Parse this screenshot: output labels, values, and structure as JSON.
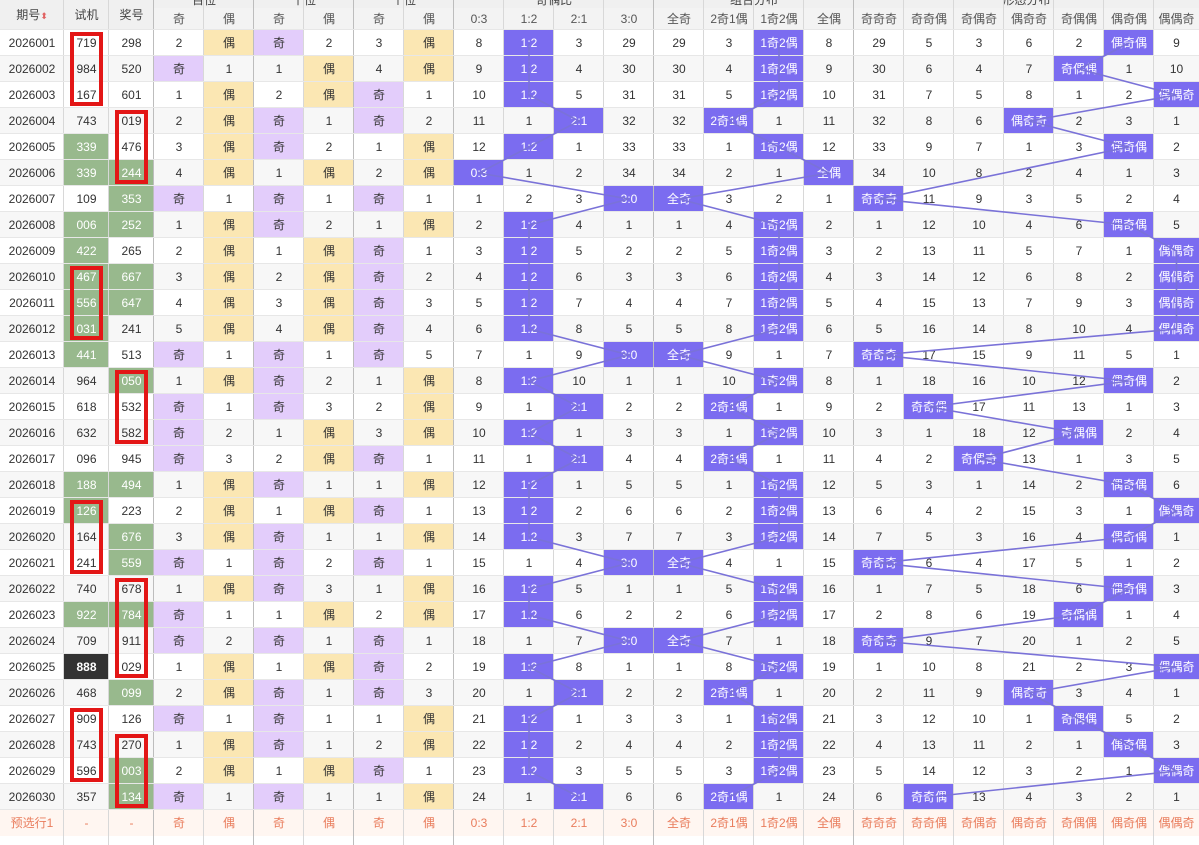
{
  "header": {
    "period_label": "期号",
    "sort_icon": "⬍",
    "test_label": "试机",
    "prize_label": "奖号",
    "groups": [
      "百位",
      "十位",
      "个位",
      "奇偶比",
      "组合分布",
      "形态分布"
    ],
    "sub": [
      "奇",
      "偶",
      "奇",
      "偶",
      "奇",
      "偶",
      "0:3",
      "1:2",
      "2:1",
      "3:0",
      "全奇",
      "2奇1偶",
      "1奇2偶",
      "全偶",
      "奇奇奇",
      "奇奇偶",
      "奇偶奇",
      "偶奇奇",
      "奇偶偶",
      "偶奇偶",
      "偶偶奇"
    ]
  },
  "rows": [
    {
      "p": "2026001",
      "t": "719",
      "z": "298",
      "v": [
        "2",
        "偶",
        "奇",
        "2",
        "3",
        "偶",
        "8",
        "1:2",
        "3",
        "29",
        "29",
        "3",
        "1奇2偶",
        "8",
        "29",
        "5",
        "3",
        "6",
        "2",
        "偶奇偶",
        "9"
      ]
    },
    {
      "p": "2026002",
      "t": "984",
      "z": "520",
      "v": [
        "奇",
        "1",
        "1",
        "偶",
        "4",
        "偶",
        "9",
        "1:2",
        "4",
        "30",
        "30",
        "4",
        "1奇2偶",
        "9",
        "30",
        "6",
        "4",
        "7",
        "奇偶偶",
        "1",
        "10"
      ]
    },
    {
      "p": "2026003",
      "t": "167",
      "z": "601",
      "v": [
        "1",
        "偶",
        "2",
        "偶",
        "奇",
        "1",
        "10",
        "1:2",
        "5",
        "31",
        "31",
        "5",
        "1奇2偶",
        "10",
        "31",
        "7",
        "5",
        "8",
        "1",
        "2",
        "偶偶奇"
      ]
    },
    {
      "p": "2026004",
      "t": "743",
      "z": "019",
      "v": [
        "2",
        "偶",
        "奇",
        "1",
        "奇",
        "2",
        "11",
        "1",
        "2:1",
        "32",
        "32",
        "2奇1偶",
        "1",
        "11",
        "32",
        "8",
        "6",
        "偶奇奇",
        "2",
        "3",
        "1"
      ]
    },
    {
      "p": "2026005",
      "t": "339",
      "z": "476",
      "v": [
        "3",
        "偶",
        "奇",
        "2",
        "1",
        "偶",
        "12",
        "1:2",
        "1",
        "33",
        "33",
        "1",
        "1奇2偶",
        "12",
        "33",
        "9",
        "7",
        "1",
        "3",
        "偶奇偶",
        "2"
      ]
    },
    {
      "p": "2026006",
      "t": "339",
      "z": "244",
      "v": [
        "4",
        "偶",
        "1",
        "偶",
        "2",
        "偶",
        "0:3",
        "1",
        "2",
        "34",
        "34",
        "2",
        "1",
        "全偶",
        "34",
        "10",
        "8",
        "2",
        "4",
        "1",
        "3"
      ]
    },
    {
      "p": "2026007",
      "t": "109",
      "z": "353",
      "v": [
        "奇",
        "1",
        "奇",
        "1",
        "奇",
        "1",
        "1",
        "2",
        "3",
        "3:0",
        "全奇",
        "3",
        "2",
        "1",
        "奇奇奇",
        "11",
        "9",
        "3",
        "5",
        "2",
        "4"
      ]
    },
    {
      "p": "2026008",
      "t": "006",
      "z": "252",
      "v": [
        "1",
        "偶",
        "奇",
        "2",
        "1",
        "偶",
        "2",
        "1:2",
        "4",
        "1",
        "1",
        "4",
        "1奇2偶",
        "2",
        "1",
        "12",
        "10",
        "4",
        "6",
        "偶奇偶",
        "5"
      ]
    },
    {
      "p": "2026009",
      "t": "422",
      "z": "265",
      "v": [
        "2",
        "偶",
        "1",
        "偶",
        "奇",
        "1",
        "3",
        "1:2",
        "5",
        "2",
        "2",
        "5",
        "1奇2偶",
        "3",
        "2",
        "13",
        "11",
        "5",
        "7",
        "1",
        "偶偶奇"
      ]
    },
    {
      "p": "2026010",
      "t": "467",
      "z": "667",
      "v": [
        "3",
        "偶",
        "2",
        "偶",
        "奇",
        "2",
        "4",
        "1:2",
        "6",
        "3",
        "3",
        "6",
        "1奇2偶",
        "4",
        "3",
        "14",
        "12",
        "6",
        "8",
        "2",
        "偶偶奇"
      ]
    },
    {
      "p": "2026011",
      "t": "556",
      "z": "647",
      "v": [
        "4",
        "偶",
        "3",
        "偶",
        "奇",
        "3",
        "5",
        "1:2",
        "7",
        "4",
        "4",
        "7",
        "1奇2偶",
        "5",
        "4",
        "15",
        "13",
        "7",
        "9",
        "3",
        "偶偶奇"
      ]
    },
    {
      "p": "2026012",
      "t": "031",
      "z": "241",
      "v": [
        "5",
        "偶",
        "4",
        "偶",
        "奇",
        "4",
        "6",
        "1:2",
        "8",
        "5",
        "5",
        "8",
        "1奇2偶",
        "6",
        "5",
        "16",
        "14",
        "8",
        "10",
        "4",
        "偶偶奇"
      ]
    },
    {
      "p": "2026013",
      "t": "441",
      "z": "513",
      "v": [
        "奇",
        "1",
        "奇",
        "1",
        "奇",
        "5",
        "7",
        "1",
        "9",
        "3:0",
        "全奇",
        "9",
        "1",
        "7",
        "奇奇奇",
        "17",
        "15",
        "9",
        "11",
        "5",
        "1"
      ]
    },
    {
      "p": "2026014",
      "t": "964",
      "z": "050",
      "v": [
        "1",
        "偶",
        "奇",
        "2",
        "1",
        "偶",
        "8",
        "1:2",
        "10",
        "1",
        "1",
        "10",
        "1奇2偶",
        "8",
        "1",
        "18",
        "16",
        "10",
        "12",
        "偶奇偶",
        "2"
      ]
    },
    {
      "p": "2026015",
      "t": "618",
      "z": "532",
      "v": [
        "奇",
        "1",
        "奇",
        "3",
        "2",
        "偶",
        "9",
        "1",
        "2:1",
        "2",
        "2",
        "2奇1偶",
        "1",
        "9",
        "2",
        "奇奇偶",
        "17",
        "11",
        "13",
        "1",
        "3"
      ]
    },
    {
      "p": "2026016",
      "t": "632",
      "z": "582",
      "v": [
        "奇",
        "2",
        "1",
        "偶",
        "3",
        "偶",
        "10",
        "1:2",
        "1",
        "3",
        "3",
        "1",
        "1奇2偶",
        "10",
        "3",
        "1",
        "18",
        "12",
        "奇偶偶",
        "2",
        "4"
      ]
    },
    {
      "p": "2026017",
      "t": "096",
      "z": "945",
      "v": [
        "奇",
        "3",
        "2",
        "偶",
        "奇",
        "1",
        "11",
        "1",
        "2:1",
        "4",
        "4",
        "2奇1偶",
        "1",
        "11",
        "4",
        "2",
        "奇偶奇",
        "13",
        "1",
        "3",
        "5"
      ]
    },
    {
      "p": "2026018",
      "t": "188",
      "z": "494",
      "v": [
        "1",
        "偶",
        "奇",
        "1",
        "1",
        "偶",
        "12",
        "1:2",
        "1",
        "5",
        "5",
        "1",
        "1奇2偶",
        "12",
        "5",
        "3",
        "1",
        "14",
        "2",
        "偶奇偶",
        "6"
      ]
    },
    {
      "p": "2026019",
      "t": "126",
      "z": "223",
      "v": [
        "2",
        "偶",
        "1",
        "偶",
        "奇",
        "1",
        "13",
        "1:2",
        "2",
        "6",
        "6",
        "2",
        "1奇2偶",
        "13",
        "6",
        "4",
        "2",
        "15",
        "3",
        "1",
        "偶偶奇"
      ]
    },
    {
      "p": "2026020",
      "t": "164",
      "z": "676",
      "v": [
        "3",
        "偶",
        "奇",
        "1",
        "1",
        "偶",
        "14",
        "1:2",
        "3",
        "7",
        "7",
        "3",
        "1奇2偶",
        "14",
        "7",
        "5",
        "3",
        "16",
        "4",
        "偶奇偶",
        "1"
      ]
    },
    {
      "p": "2026021",
      "t": "241",
      "z": "559",
      "v": [
        "奇",
        "1",
        "奇",
        "2",
        "奇",
        "1",
        "15",
        "1",
        "4",
        "3:0",
        "全奇",
        "4",
        "1",
        "15",
        "奇奇奇",
        "6",
        "4",
        "17",
        "5",
        "1",
        "2"
      ]
    },
    {
      "p": "2026022",
      "t": "740",
      "z": "678",
      "v": [
        "1",
        "偶",
        "奇",
        "3",
        "1",
        "偶",
        "16",
        "1:2",
        "5",
        "1",
        "1",
        "5",
        "1奇2偶",
        "16",
        "1",
        "7",
        "5",
        "18",
        "6",
        "偶奇偶",
        "3"
      ]
    },
    {
      "p": "2026023",
      "t": "922",
      "z": "784",
      "v": [
        "奇",
        "1",
        "1",
        "偶",
        "2",
        "偶",
        "17",
        "1:2",
        "6",
        "2",
        "2",
        "6",
        "1奇2偶",
        "17",
        "2",
        "8",
        "6",
        "19",
        "奇偶偶",
        "1",
        "4"
      ]
    },
    {
      "p": "2026024",
      "t": "709",
      "z": "911",
      "v": [
        "奇",
        "2",
        "奇",
        "1",
        "奇",
        "1",
        "18",
        "1",
        "7",
        "3:0",
        "全奇",
        "7",
        "1",
        "18",
        "奇奇奇",
        "9",
        "7",
        "20",
        "1",
        "2",
        "5"
      ]
    },
    {
      "p": "2026025",
      "t": "888",
      "z": "029",
      "v": [
        "1",
        "偶",
        "1",
        "偶",
        "奇",
        "2",
        "19",
        "1:2",
        "8",
        "1",
        "1",
        "8",
        "1奇2偶",
        "19",
        "1",
        "10",
        "8",
        "21",
        "2",
        "3",
        "偶偶奇"
      ]
    },
    {
      "p": "2026026",
      "t": "468",
      "z": "099",
      "v": [
        "2",
        "偶",
        "奇",
        "1",
        "奇",
        "3",
        "20",
        "1",
        "2:1",
        "2",
        "2",
        "2奇1偶",
        "1",
        "20",
        "2",
        "11",
        "9",
        "偶奇奇",
        "3",
        "4",
        "1"
      ]
    },
    {
      "p": "2026027",
      "t": "909",
      "z": "126",
      "v": [
        "奇",
        "1",
        "奇",
        "1",
        "1",
        "偶",
        "21",
        "1:2",
        "1",
        "3",
        "3",
        "1",
        "1奇2偶",
        "21",
        "3",
        "12",
        "10",
        "1",
        "奇偶偶",
        "5",
        "2"
      ]
    },
    {
      "p": "2026028",
      "t": "743",
      "z": "270",
      "v": [
        "1",
        "偶",
        "奇",
        "1",
        "2",
        "偶",
        "22",
        "1:2",
        "2",
        "4",
        "4",
        "2",
        "1奇2偶",
        "22",
        "4",
        "13",
        "11",
        "2",
        "1",
        "偶奇偶",
        "3"
      ]
    },
    {
      "p": "2026029",
      "t": "596",
      "z": "003",
      "v": [
        "2",
        "偶",
        "1",
        "偶",
        "奇",
        "1",
        "23",
        "1:2",
        "3",
        "5",
        "5",
        "3",
        "1奇2偶",
        "23",
        "5",
        "14",
        "12",
        "3",
        "2",
        "1",
        "偶偶奇"
      ]
    },
    {
      "p": "2026030",
      "t": "357",
      "z": "134",
      "v": [
        "奇",
        "1",
        "奇",
        "1",
        "1",
        "偶",
        "24",
        "1",
        "2:1",
        "6",
        "6",
        "2奇1偶",
        "1",
        "24",
        "6",
        "奇奇偶",
        "13",
        "4",
        "3",
        "2",
        "1"
      ]
    }
  ],
  "footer": {
    "label": "预选行1",
    "dash": "-",
    "cells": [
      "奇",
      "偶",
      "奇",
      "偶",
      "奇",
      "偶",
      "0:3",
      "1:2",
      "2:1",
      "3:0",
      "全奇",
      "2奇1偶",
      "1奇2偶",
      "全偶",
      "奇奇奇",
      "奇奇偶",
      "奇偶奇",
      "偶奇奇",
      "奇偶偶",
      "偶奇偶",
      "偶偶奇"
    ]
  },
  "test_green_rows": [
    4,
    5,
    7,
    8,
    9,
    10,
    11,
    12,
    17,
    18,
    22
  ],
  "test_black_rows": [
    24
  ],
  "prize_green_rows": [
    5,
    6,
    7,
    9,
    10,
    13,
    17,
    19,
    20,
    22,
    25,
    28,
    29
  ],
  "colors": {
    "purple": "#7b6cf0",
    "yellow": "#fbe7b3",
    "lilac": "#e3cdfb",
    "green": "#98b98d",
    "red": "#e31616",
    "line": "#7a72d8"
  }
}
